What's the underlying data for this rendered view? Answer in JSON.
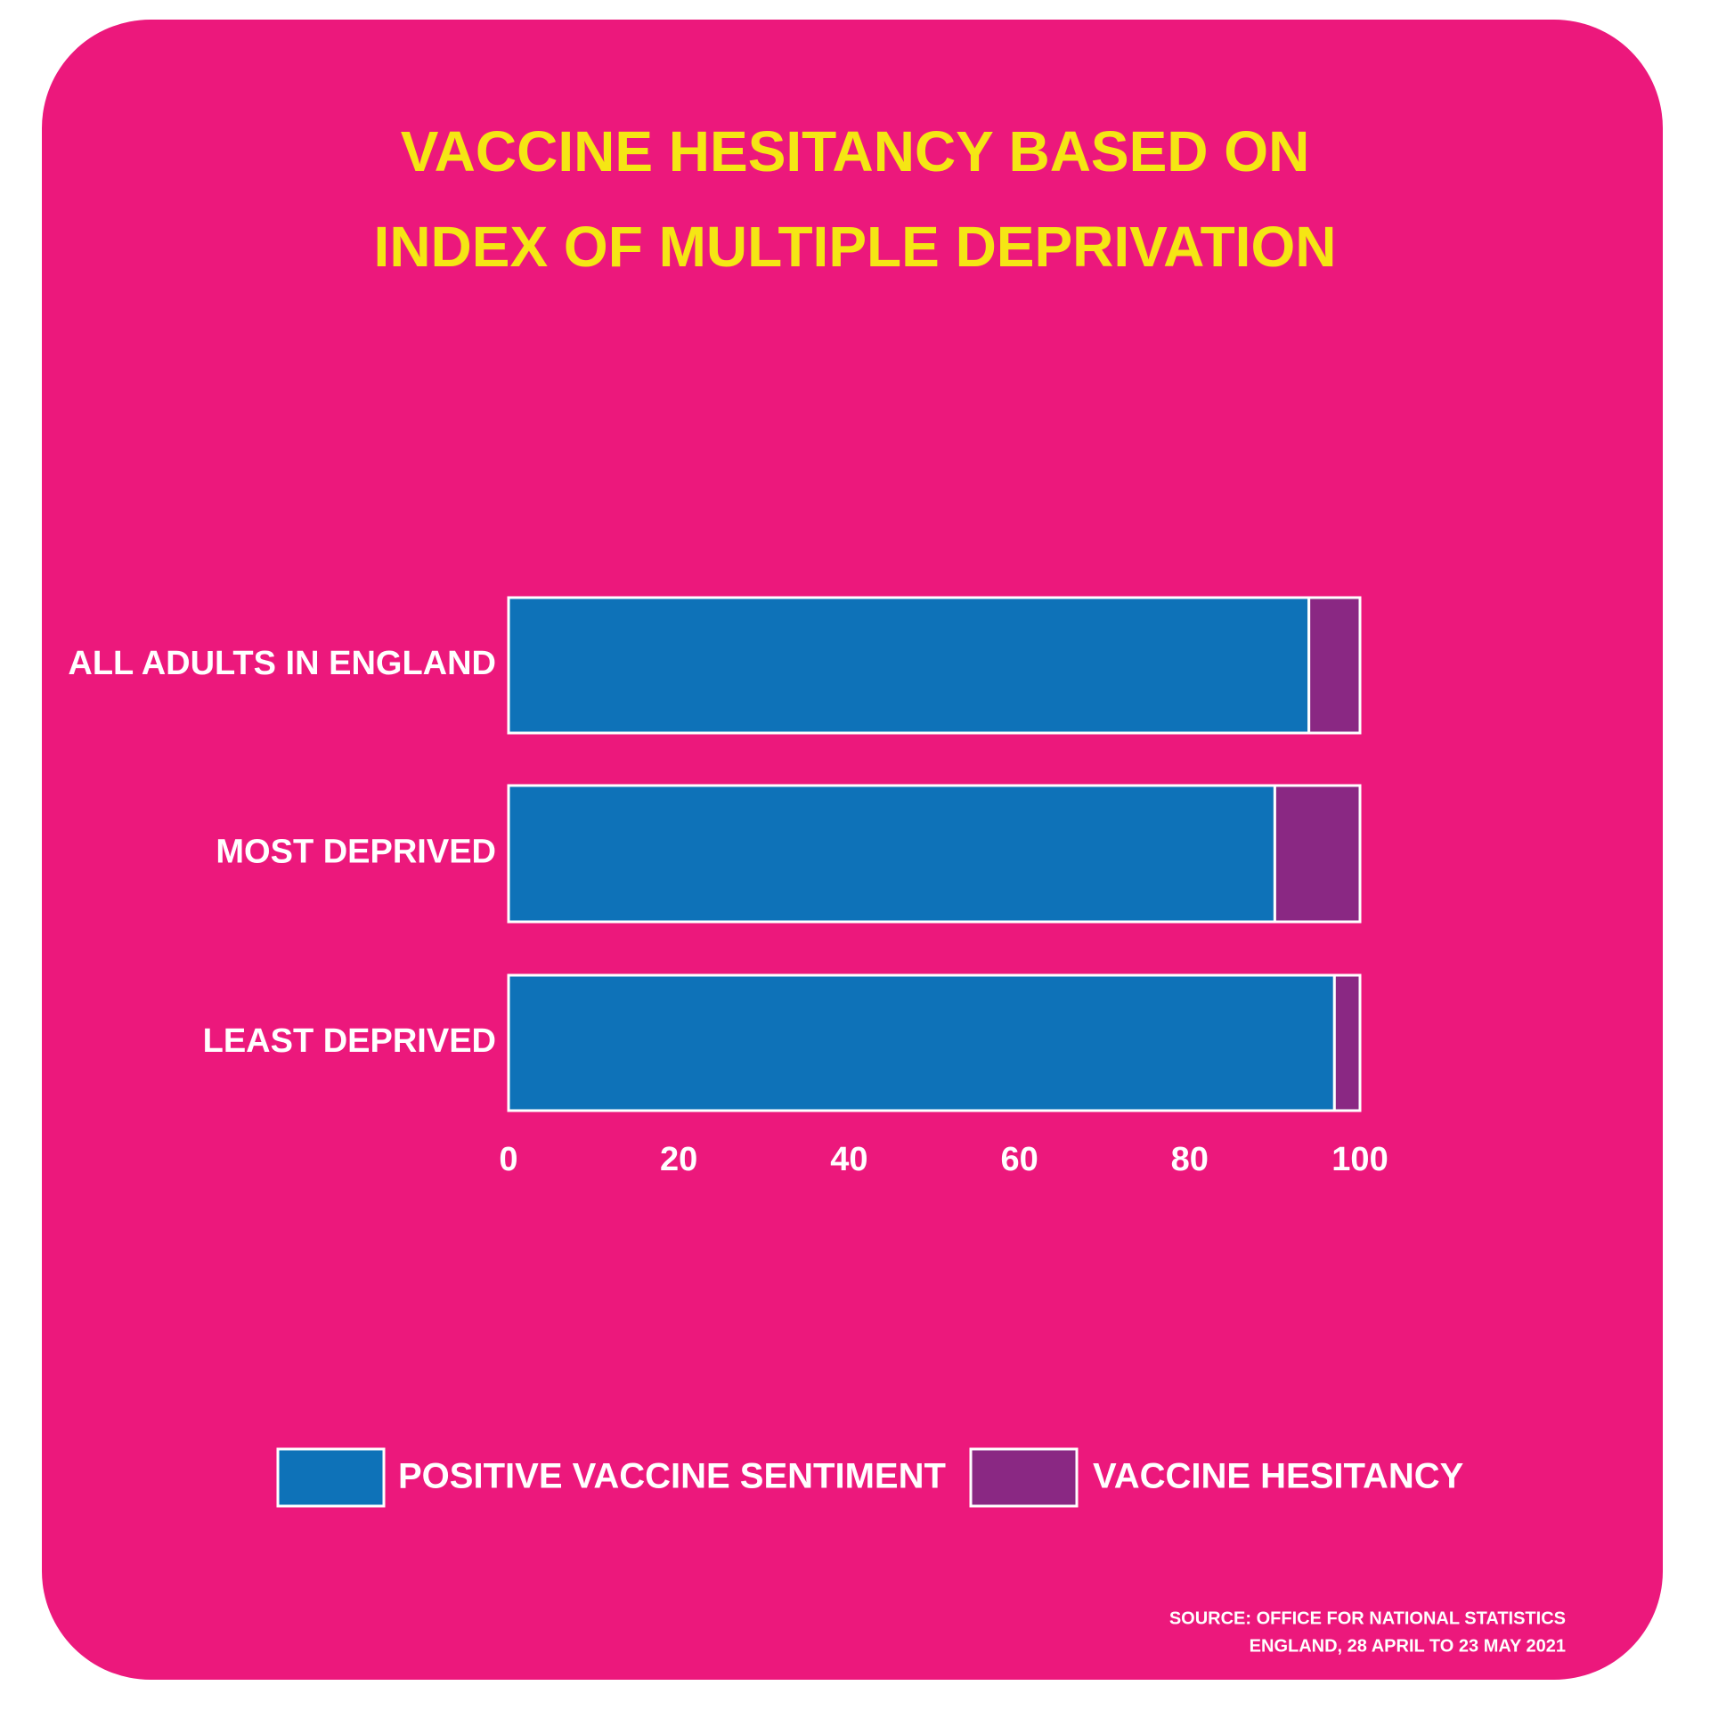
{
  "chart_data": {
    "type": "stacked-bar-horizontal",
    "title": [
      "VACCINE HESITANCY BASED ON",
      "INDEX OF MULTIPLE DEPRIVATION"
    ],
    "categories": [
      "ALL ADULTS IN ENGLAND",
      "MOST DEPRIVED",
      "LEAST DEPRIVED"
    ],
    "series": [
      {
        "name": "POSITIVE VACCINE SENTIMENT",
        "color": "#0e72b8",
        "values": [
          94,
          90,
          97
        ]
      },
      {
        "name": "VACCINE HESITANCY",
        "color": "#8a2883",
        "values": [
          6,
          10,
          3
        ]
      }
    ],
    "xlim": [
      0,
      100
    ],
    "xticks": [
      0,
      20,
      40,
      60,
      80,
      100
    ],
    "source": [
      "SOURCE: OFFICE FOR NATIONAL STATISTICS",
      "ENGLAND, 28 APRIL TO 23 MAY 2021"
    ]
  }
}
